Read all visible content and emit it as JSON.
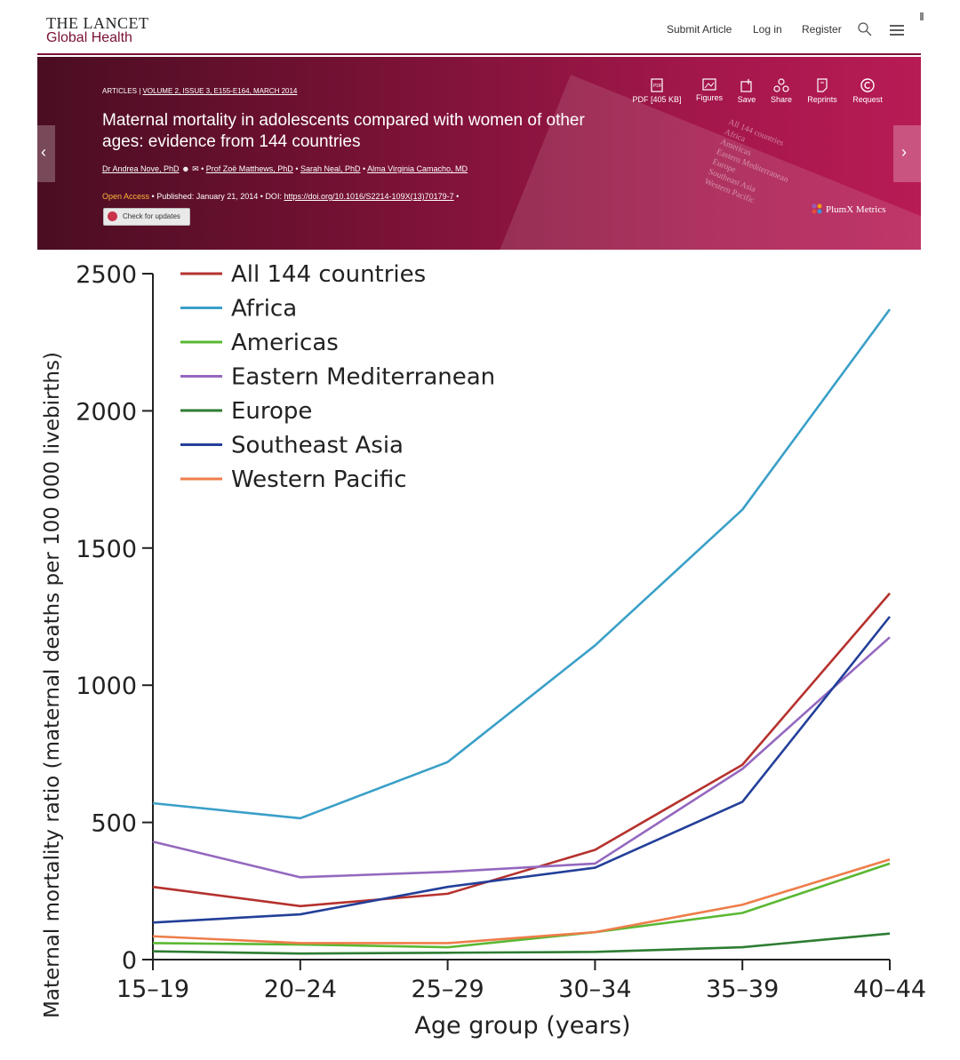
{
  "header": {
    "logo_line1": "THE LANCET",
    "logo_line2": "Global Health",
    "nav": [
      "Submit Article",
      "Log in",
      "Register"
    ]
  },
  "article": {
    "section": "ARTICLES",
    "issue": "VOLUME 2, ISSUE 3, E155-E164, MARCH 2014",
    "title": "Maternal mortality in adolescents compared with women of other ages: evidence from 144 countries",
    "authors": [
      "Dr Andrea Nove, PhD",
      "Prof Zoë Matthews, PhD",
      "Sarah Neal, PhD",
      "Alma Virginia Camacho, MD"
    ],
    "open_access": "Open Access",
    "published": "Published: January 21, 2014",
    "doi_label": "DOI:",
    "doi": "https://doi.org/10.1016/S2214-109X(13)70179-7",
    "check_updates": "Check for updates",
    "tools": [
      {
        "label": "PDF [405 KB]",
        "icon": "pdf-icon"
      },
      {
        "label": "Figures",
        "icon": "image-icon"
      },
      {
        "label": "Save",
        "icon": "save-icon"
      },
      {
        "label": "Share",
        "icon": "share-icon"
      },
      {
        "label": "Reprints",
        "icon": "reprints-icon"
      },
      {
        "label": "Request",
        "icon": "copyright-icon"
      }
    ],
    "plumx": "PlumX Metrics",
    "accent_color": "#7b1136"
  },
  "chart_data": {
    "type": "line",
    "x": [
      "15–19",
      "20–24",
      "25–29",
      "30–34",
      "35–39",
      "40–44"
    ],
    "xlabel": "Age group (years)",
    "ylabel": "Maternal mortality ratio (maternal deaths per 100 000 livebirths)",
    "ylim": [
      0,
      2500
    ],
    "yticks": [
      0,
      500,
      1000,
      1500,
      2000,
      2500
    ],
    "legend_position": "top-left",
    "grid": false,
    "series": [
      {
        "name": "All 144 countries",
        "color": "#b5322e",
        "values": [
          265,
          195,
          240,
          400,
          710,
          1335
        ]
      },
      {
        "name": "Africa",
        "color": "#3aa0c8",
        "values": [
          570,
          515,
          720,
          1145,
          1640,
          2370
        ]
      },
      {
        "name": "Americas",
        "color": "#5ab832",
        "values": [
          60,
          55,
          45,
          100,
          170,
          350
        ]
      },
      {
        "name": "Eastern Mediterranean",
        "color": "#9468bf",
        "values": [
          430,
          300,
          320,
          350,
          695,
          1175
        ]
      },
      {
        "name": "Europe",
        "color": "#2e7d32",
        "values": [
          30,
          22,
          25,
          28,
          45,
          95
        ]
      },
      {
        "name": "Southeast Asia",
        "color": "#233f99",
        "values": [
          135,
          165,
          265,
          335,
          575,
          1250
        ]
      },
      {
        "name": "Western Pacific",
        "color": "#ee7d4a",
        "values": [
          85,
          60,
          60,
          100,
          200,
          365
        ]
      }
    ]
  }
}
